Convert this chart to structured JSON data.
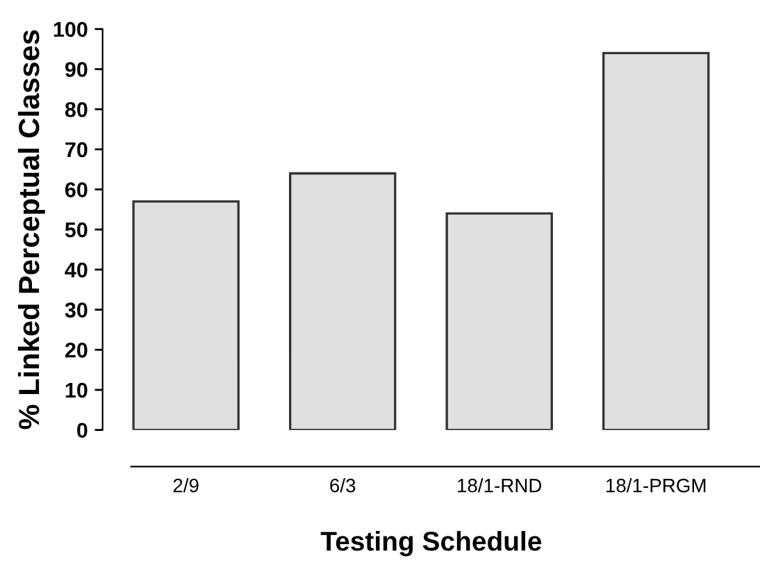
{
  "chart_data": {
    "type": "bar",
    "xlabel": "Testing Schedule",
    "ylabel": "% Linked Perceptual Classes",
    "categories": [
      "2/9",
      "6/3",
      "18/1-RND",
      "18/1-PRGM"
    ],
    "values": [
      57,
      64,
      54,
      94
    ],
    "color": "#e0e0e0",
    "ylim": [
      0,
      100
    ],
    "yticks": [
      0,
      10,
      20,
      30,
      40,
      50,
      60,
      70,
      80,
      90,
      100
    ],
    "grid": false,
    "legend": false
  }
}
